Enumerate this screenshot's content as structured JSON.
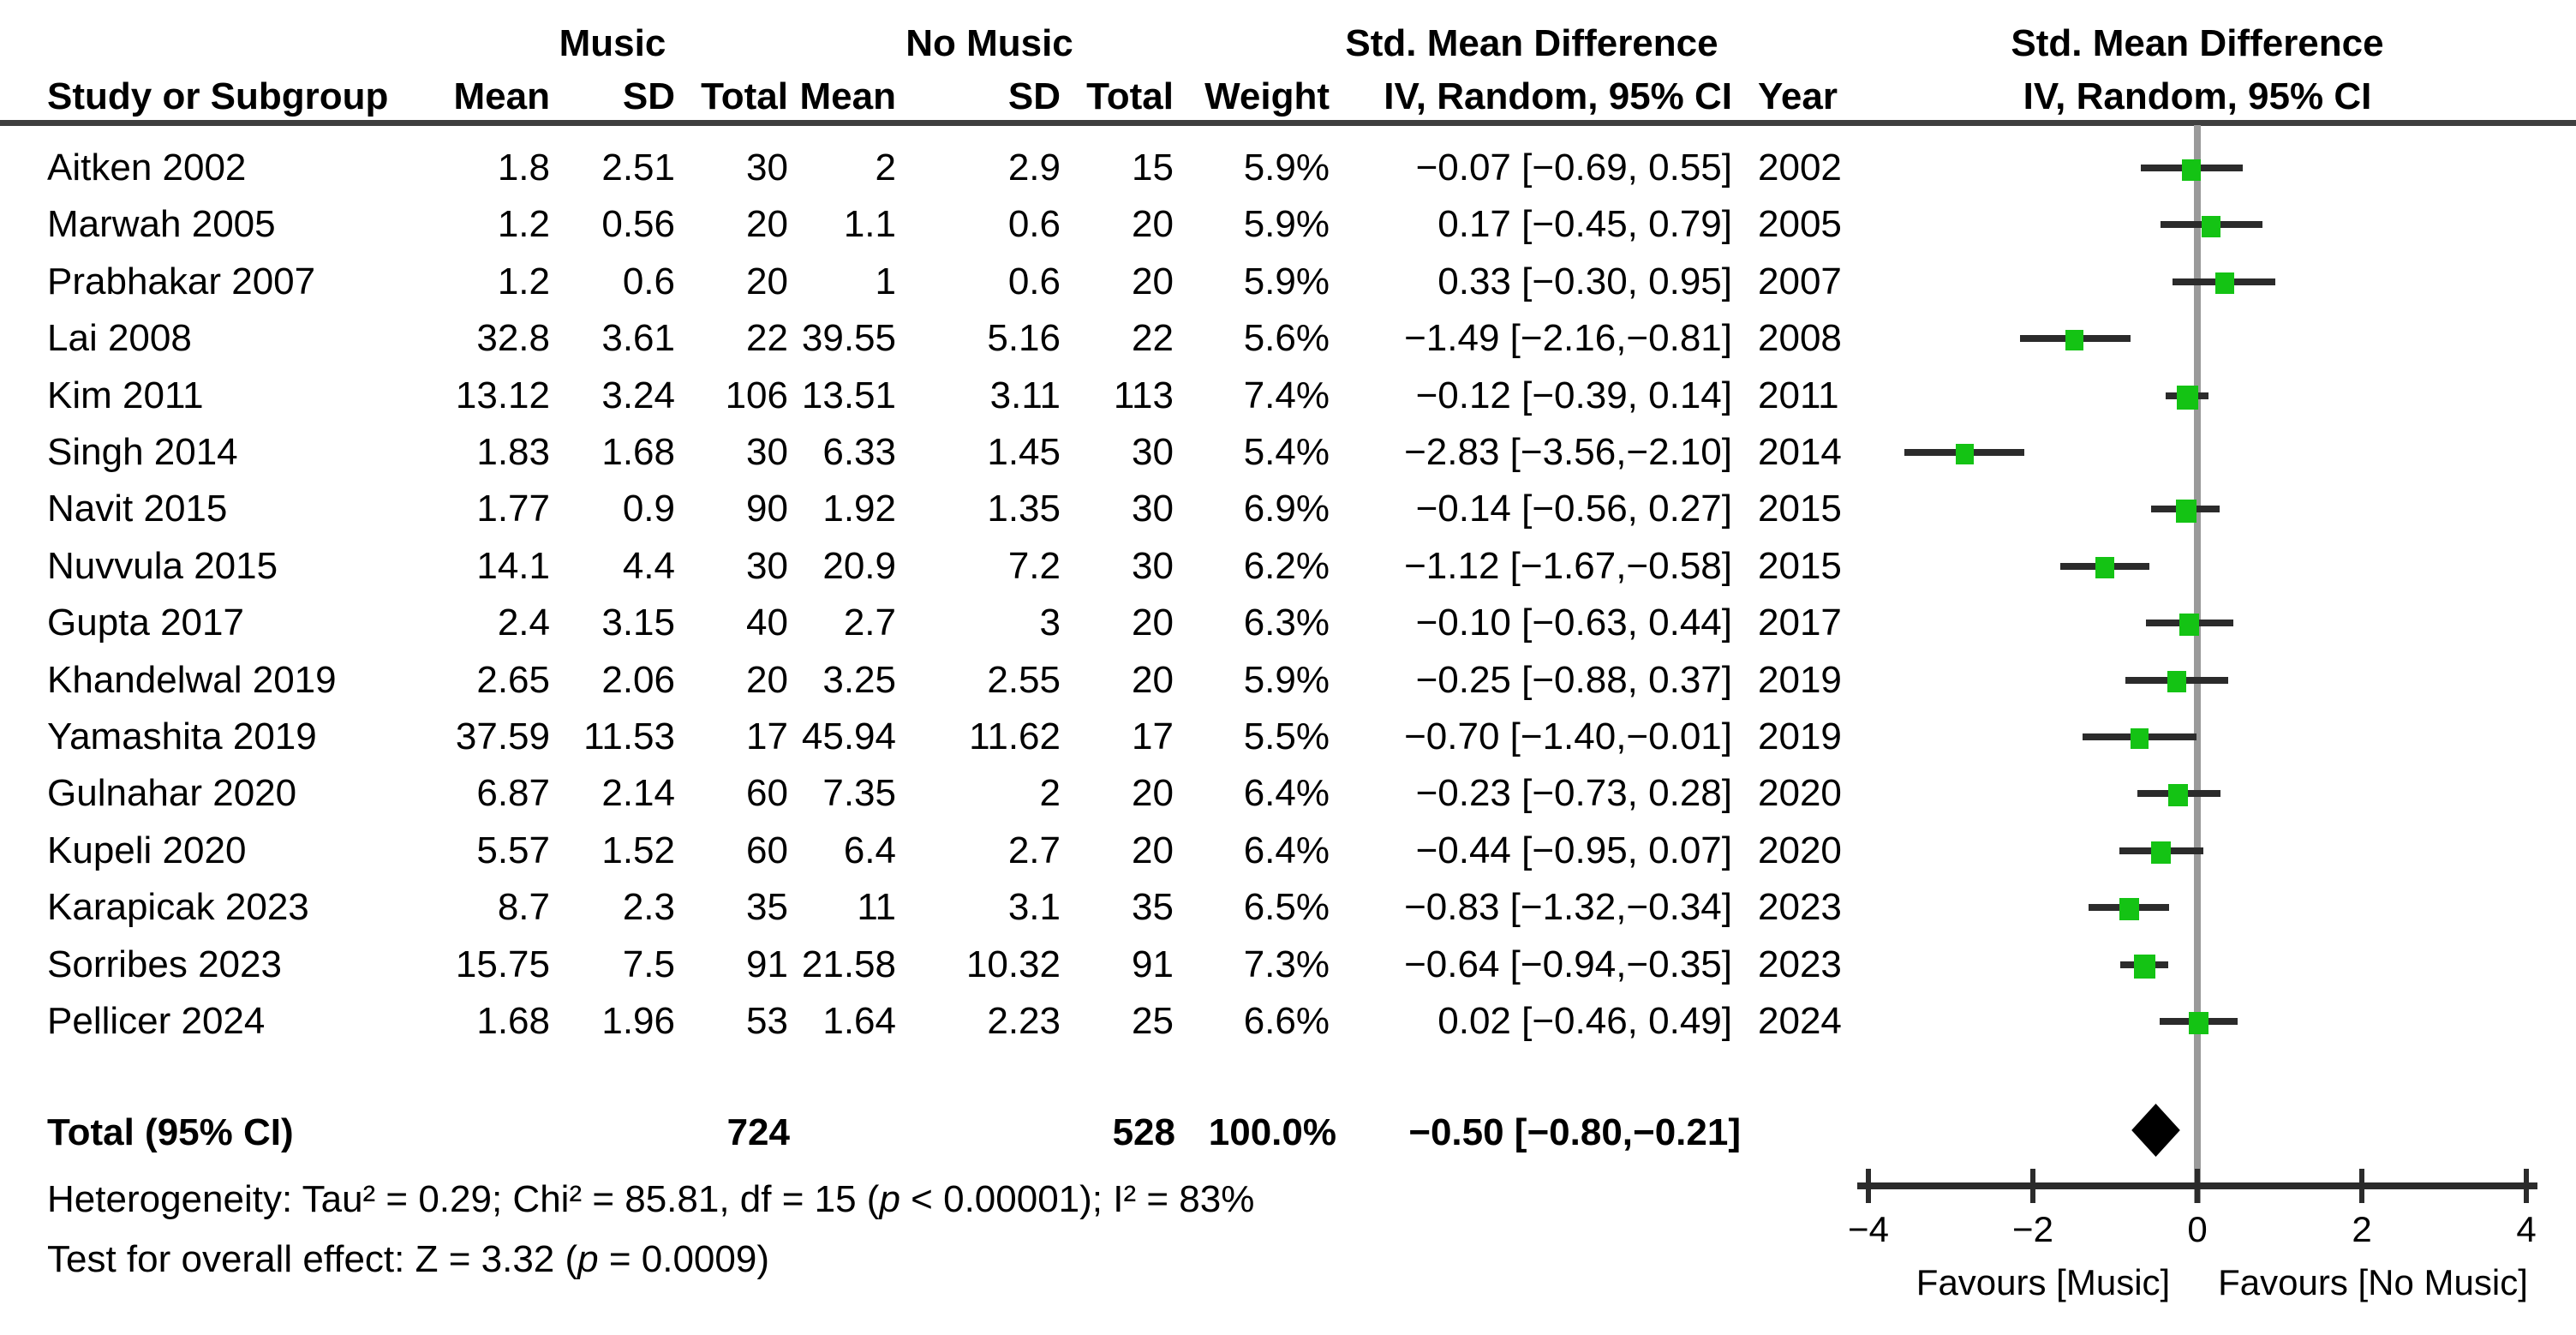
{
  "chart_data": {
    "type": "scatter",
    "subtype": "forest_plot",
    "headers": {
      "group_left": "Music",
      "group_right": "No Music",
      "smd": "Std. Mean Difference",
      "method": "IV, Random, 95% CI",
      "study": "Study or Subgroup",
      "mean": "Mean",
      "sd": "SD",
      "total": "Total",
      "weight": "Weight",
      "year": "Year"
    },
    "studies": [
      {
        "name": "Aitken 2002",
        "mean1": "1.8",
        "sd1": "2.51",
        "total1": "30",
        "mean2": "2",
        "sd2": "2.9",
        "total2": "15",
        "weight": "5.9%",
        "ci": "−0.07 [−0.69, 0.55]",
        "year": "2002",
        "est": -0.07,
        "lo": -0.69,
        "hi": 0.55,
        "weight_num": 5.9
      },
      {
        "name": "Marwah 2005",
        "mean1": "1.2",
        "sd1": "0.56",
        "total1": "20",
        "mean2": "1.1",
        "sd2": "0.6",
        "total2": "20",
        "weight": "5.9%",
        "ci": "0.17 [−0.45, 0.79]",
        "year": "2005",
        "est": 0.17,
        "lo": -0.45,
        "hi": 0.79,
        "weight_num": 5.9
      },
      {
        "name": "Prabhakar 2007",
        "mean1": "1.2",
        "sd1": "0.6",
        "total1": "20",
        "mean2": "1",
        "sd2": "0.6",
        "total2": "20",
        "weight": "5.9%",
        "ci": "0.33 [−0.30, 0.95]",
        "year": "2007",
        "est": 0.33,
        "lo": -0.3,
        "hi": 0.95,
        "weight_num": 5.9
      },
      {
        "name": "Lai 2008",
        "mean1": "32.8",
        "sd1": "3.61",
        "total1": "22",
        "mean2": "39.55",
        "sd2": "5.16",
        "total2": "22",
        "weight": "5.6%",
        "ci": "−1.49 [−2.16,−0.81]",
        "year": "2008",
        "est": -1.49,
        "lo": -2.16,
        "hi": -0.81,
        "weight_num": 5.6
      },
      {
        "name": "Kim 2011",
        "mean1": "13.12",
        "sd1": "3.24",
        "total1": "106",
        "mean2": "13.51",
        "sd2": "3.11",
        "total2": "113",
        "weight": "7.4%",
        "ci": "−0.12 [−0.39, 0.14]",
        "year": "2011",
        "est": -0.12,
        "lo": -0.39,
        "hi": 0.14,
        "weight_num": 7.4
      },
      {
        "name": "Singh 2014",
        "mean1": "1.83",
        "sd1": "1.68",
        "total1": "30",
        "mean2": "6.33",
        "sd2": "1.45",
        "total2": "30",
        "weight": "5.4%",
        "ci": "−2.83 [−3.56,−2.10]",
        "year": "2014",
        "est": -2.83,
        "lo": -3.56,
        "hi": -2.1,
        "weight_num": 5.4
      },
      {
        "name": "Navit 2015",
        "mean1": "1.77",
        "sd1": "0.9",
        "total1": "90",
        "mean2": "1.92",
        "sd2": "1.35",
        "total2": "30",
        "weight": "6.9%",
        "ci": "−0.14 [−0.56, 0.27]",
        "year": "2015",
        "est": -0.14,
        "lo": -0.56,
        "hi": 0.27,
        "weight_num": 6.9
      },
      {
        "name": "Nuvvula 2015",
        "mean1": "14.1",
        "sd1": "4.4",
        "total1": "30",
        "mean2": "20.9",
        "sd2": "7.2",
        "total2": "30",
        "weight": "6.2%",
        "ci": "−1.12 [−1.67,−0.58]",
        "year": "2015",
        "est": -1.12,
        "lo": -1.67,
        "hi": -0.58,
        "weight_num": 6.2
      },
      {
        "name": "Gupta 2017",
        "mean1": "2.4",
        "sd1": "3.15",
        "total1": "40",
        "mean2": "2.7",
        "sd2": "3",
        "total2": "20",
        "weight": "6.3%",
        "ci": "−0.10 [−0.63, 0.44]",
        "year": "2017",
        "est": -0.1,
        "lo": -0.63,
        "hi": 0.44,
        "weight_num": 6.3
      },
      {
        "name": "Khandelwal 2019",
        "mean1": "2.65",
        "sd1": "2.06",
        "total1": "20",
        "mean2": "3.25",
        "sd2": "2.55",
        "total2": "20",
        "weight": "5.9%",
        "ci": "−0.25 [−0.88, 0.37]",
        "year": "2019",
        "est": -0.25,
        "lo": -0.88,
        "hi": 0.37,
        "weight_num": 5.9
      },
      {
        "name": "Yamashita 2019",
        "mean1": "37.59",
        "sd1": "11.53",
        "total1": "17",
        "mean2": "45.94",
        "sd2": "11.62",
        "total2": "17",
        "weight": "5.5%",
        "ci": "−0.70 [−1.40,−0.01]",
        "year": "2019",
        "est": -0.7,
        "lo": -1.4,
        "hi": -0.01,
        "weight_num": 5.5
      },
      {
        "name": "Gulnahar 2020",
        "mean1": "6.87",
        "sd1": "2.14",
        "total1": "60",
        "mean2": "7.35",
        "sd2": "2",
        "total2": "20",
        "weight": "6.4%",
        "ci": "−0.23 [−0.73, 0.28]",
        "year": "2020",
        "est": -0.23,
        "lo": -0.73,
        "hi": 0.28,
        "weight_num": 6.4
      },
      {
        "name": "Kupeli 2020",
        "mean1": "5.57",
        "sd1": "1.52",
        "total1": "60",
        "mean2": "6.4",
        "sd2": "2.7",
        "total2": "20",
        "weight": "6.4%",
        "ci": "−0.44 [−0.95, 0.07]",
        "year": "2020",
        "est": -0.44,
        "lo": -0.95,
        "hi": 0.07,
        "weight_num": 6.4
      },
      {
        "name": "Karapicak 2023",
        "mean1": "8.7",
        "sd1": "2.3",
        "total1": "35",
        "mean2": "11",
        "sd2": "3.1",
        "total2": "35",
        "weight": "6.5%",
        "ci": "−0.83 [−1.32,−0.34]",
        "year": "2023",
        "est": -0.83,
        "lo": -1.32,
        "hi": -0.34,
        "weight_num": 6.5
      },
      {
        "name": "Sorribes 2023",
        "mean1": "15.75",
        "sd1": "7.5",
        "total1": "91",
        "mean2": "21.58",
        "sd2": "10.32",
        "total2": "91",
        "weight": "7.3%",
        "ci": "−0.64 [−0.94,−0.35]",
        "year": "2023",
        "est": -0.64,
        "lo": -0.94,
        "hi": -0.35,
        "weight_num": 7.3
      },
      {
        "name": "Pellicer 2024",
        "mean1": "1.68",
        "sd1": "1.96",
        "total1": "53",
        "mean2": "1.64",
        "sd2": "2.23",
        "total2": "25",
        "weight": "6.6%",
        "ci": "0.02 [−0.46, 0.49]",
        "year": "2024",
        "est": 0.02,
        "lo": -0.46,
        "hi": 0.49,
        "weight_num": 6.6
      }
    ],
    "total_row": {
      "label": "Total (95% CI)",
      "total1": "724",
      "total2": "528",
      "weight": "100.0%",
      "ci": "−0.50 [−0.80,−0.21]",
      "est": -0.5,
      "lo": -0.8,
      "hi": -0.21
    },
    "footer": {
      "het": [
        "Heterogeneity: Tau² = 0.29; Chi² = 85.81, df = 15 (",
        "p",
        " < 0.00001); I² = 83%"
      ],
      "test": [
        "Test for overall effect: Z = 3.32 (",
        "p",
        " = 0.0009)"
      ]
    },
    "axis": {
      "min": -4,
      "max": 4,
      "ticks": [
        {
          "v": -4,
          "label": "−4"
        },
        {
          "v": -2,
          "label": "−2"
        },
        {
          "v": 0,
          "label": "0"
        },
        {
          "v": 2,
          "label": "2"
        },
        {
          "v": 4,
          "label": "4"
        }
      ],
      "favours_left": "Favours [Music]",
      "favours_right": "Favours [No Music]"
    },
    "colors": {
      "marker": "#14c314",
      "ci_line": "#2b2b2b",
      "zero_line": "#9a9a9a",
      "axis": "#2b2b2b",
      "diamond": "#000000",
      "rule": "#3f3f3f"
    }
  }
}
